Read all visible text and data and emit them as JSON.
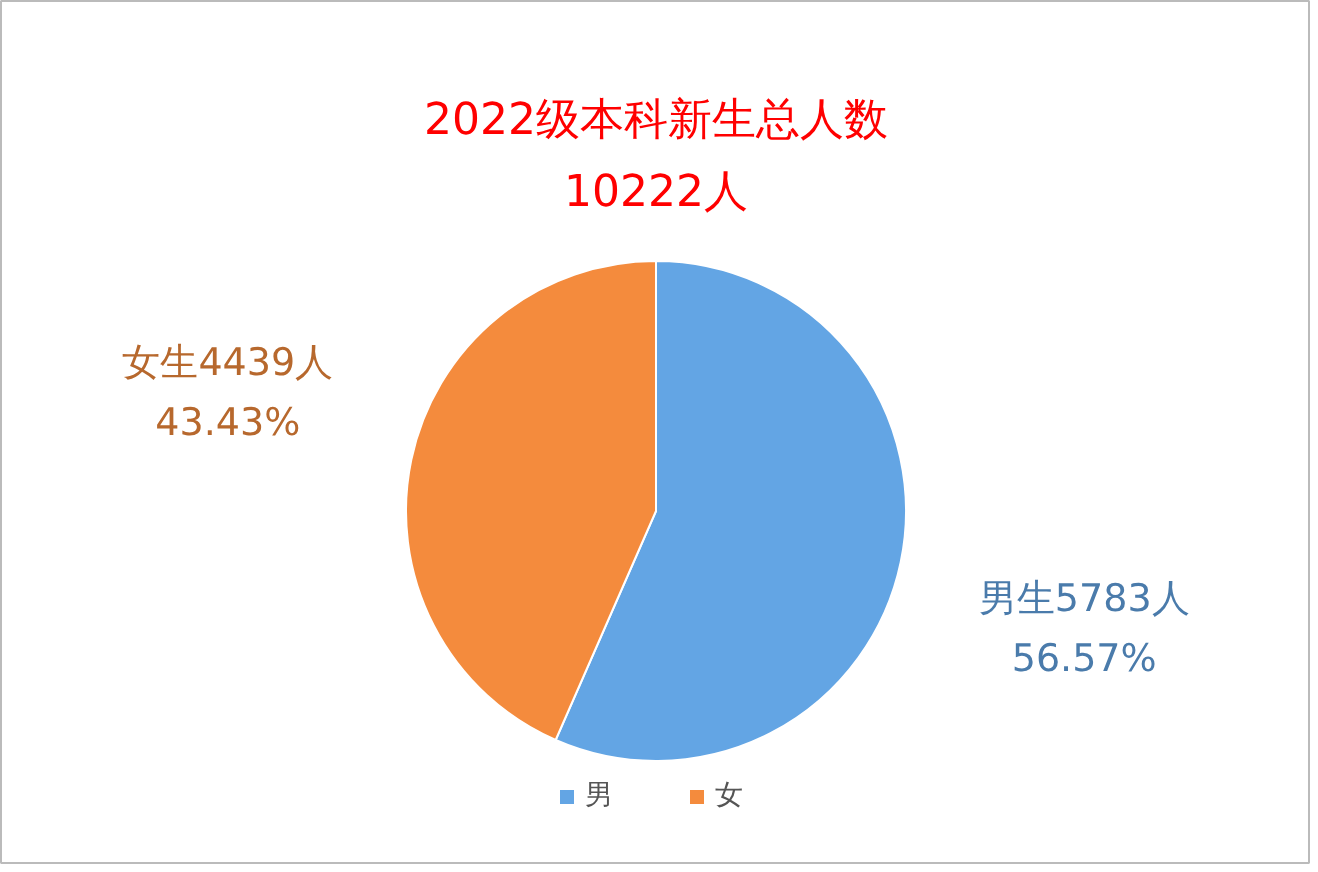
{
  "chart_data": {
    "type": "pie",
    "title": "2022级本科新生总人数\n10222人",
    "categories": [
      "男",
      "女"
    ],
    "values": [
      5783,
      4439
    ],
    "colors": [
      "#63a5e4",
      "#f48b3d"
    ],
    "value_labels": [
      "男生5783人\n56.57%",
      "女生4439人\n43.43%"
    ],
    "legend": "bottom"
  }
}
